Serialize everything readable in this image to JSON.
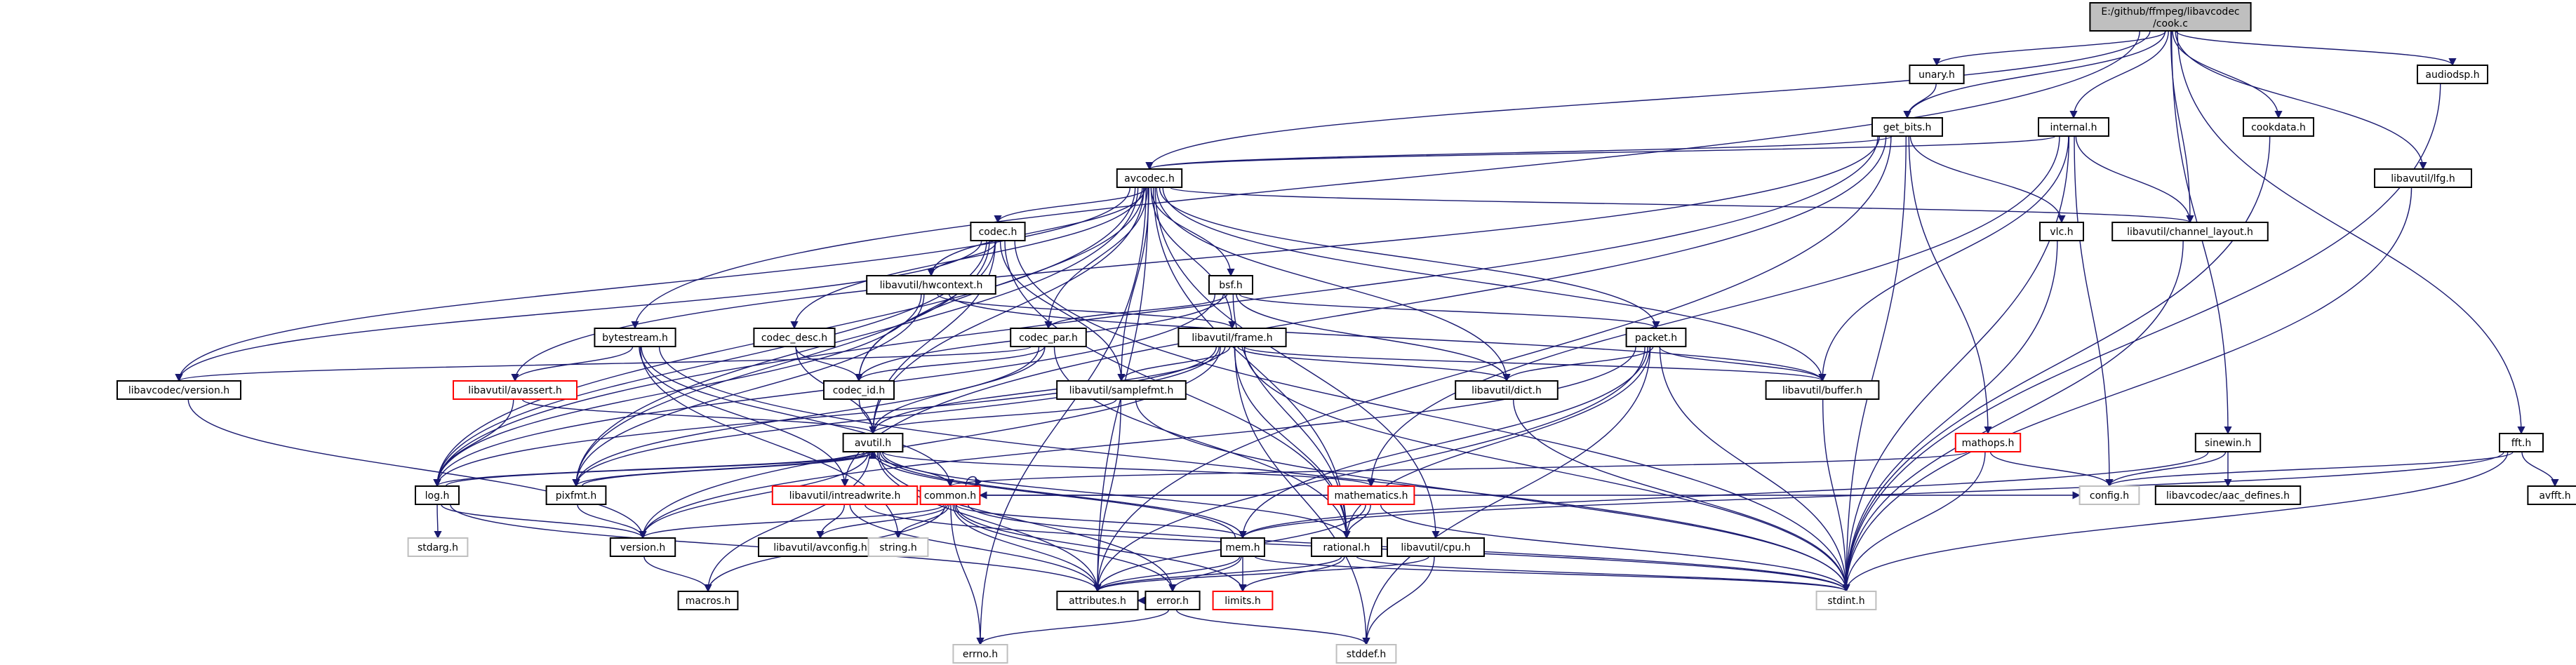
{
  "colors": {
    "edge": "#191970",
    "root_fill": "#bfbfbf",
    "node_border": "#000000",
    "missing_border": "#bfbfbf",
    "incomplete_border": "#ff0000"
  },
  "root": {
    "name": "E:/github/ffmpeg/libavcodec\n/cook.c"
  },
  "nodes": {
    "unary": {
      "label": "unary.h",
      "kind": "normal"
    },
    "get_bits": {
      "label": "get_bits.h",
      "kind": "normal"
    },
    "internal": {
      "label": "internal.h",
      "kind": "normal"
    },
    "audiodsp": {
      "label": "audiodsp.h",
      "kind": "normal"
    },
    "avcodec": {
      "label": "avcodec.h",
      "kind": "normal"
    },
    "cookdata": {
      "label": "cookdata.h",
      "kind": "normal"
    },
    "fft": {
      "label": "fft.h",
      "kind": "normal"
    },
    "lfg": {
      "label": "libavutil/lfg.h",
      "kind": "normal"
    },
    "vlc": {
      "label": "vlc.h",
      "kind": "normal"
    },
    "chlayout": {
      "label": "libavutil/channel_layout.h",
      "kind": "normal"
    },
    "codec": {
      "label": "codec.h",
      "kind": "normal"
    },
    "bsf": {
      "label": "bsf.h",
      "kind": "normal"
    },
    "hwcontext": {
      "label": "libavutil/hwcontext.h",
      "kind": "normal"
    },
    "bytestream": {
      "label": "bytestream.h",
      "kind": "normal"
    },
    "codec_desc": {
      "label": "codec_desc.h",
      "kind": "normal"
    },
    "codec_par": {
      "label": "codec_par.h",
      "kind": "normal"
    },
    "frame": {
      "label": "libavutil/frame.h",
      "kind": "normal"
    },
    "packet": {
      "label": "packet.h",
      "kind": "normal"
    },
    "sinewin": {
      "label": "sinewin.h",
      "kind": "normal"
    },
    "lavcversion": {
      "label": "libavcodec/version.h",
      "kind": "normal"
    },
    "avassert": {
      "label": "libavutil/avassert.h",
      "kind": "incomplete"
    },
    "codec_id": {
      "label": "codec_id.h",
      "kind": "normal"
    },
    "samplefmt": {
      "label": "libavutil/samplefmt.h",
      "kind": "normal"
    },
    "dict": {
      "label": "libavutil/dict.h",
      "kind": "normal"
    },
    "buffer": {
      "label": "libavutil/buffer.h",
      "kind": "normal"
    },
    "mathops": {
      "label": "mathops.h",
      "kind": "incomplete"
    },
    "avutil": {
      "label": "avutil.h",
      "kind": "normal"
    },
    "log": {
      "label": "log.h",
      "kind": "normal"
    },
    "pixfmt": {
      "label": "pixfmt.h",
      "kind": "normal"
    },
    "intreadwrite": {
      "label": "libavutil/intreadwrite.h",
      "kind": "incomplete"
    },
    "common": {
      "label": "common.h",
      "kind": "incomplete"
    },
    "mathematics": {
      "label": "mathematics.h",
      "kind": "incomplete"
    },
    "config": {
      "label": "config.h",
      "kind": "missing"
    },
    "aacdefines": {
      "label": "libavcodec/aac_defines.h",
      "kind": "normal"
    },
    "avfft": {
      "label": "avfft.h",
      "kind": "normal"
    },
    "stdarg": {
      "label": "stdarg.h",
      "kind": "missing"
    },
    "version": {
      "label": "version.h",
      "kind": "normal"
    },
    "avconfig": {
      "label": "libavutil/avconfig.h",
      "kind": "normal"
    },
    "string": {
      "label": "string.h",
      "kind": "missing"
    },
    "mem": {
      "label": "mem.h",
      "kind": "normal"
    },
    "rational": {
      "label": "rational.h",
      "kind": "normal"
    },
    "cpu": {
      "label": "libavutil/cpu.h",
      "kind": "normal"
    },
    "macros": {
      "label": "macros.h",
      "kind": "normal"
    },
    "attributes": {
      "label": "attributes.h",
      "kind": "normal"
    },
    "error": {
      "label": "error.h",
      "kind": "normal"
    },
    "limits": {
      "label": "limits.h",
      "kind": "incomplete"
    },
    "stdint": {
      "label": "stdint.h",
      "kind": "missing"
    },
    "errno": {
      "label": "errno.h",
      "kind": "missing"
    },
    "stddef": {
      "label": "stddef.h",
      "kind": "missing"
    }
  },
  "edges": [
    [
      "root",
      "unary"
    ],
    [
      "root",
      "get_bits"
    ],
    [
      "root",
      "internal"
    ],
    [
      "root",
      "audiodsp"
    ],
    [
      "root",
      "avcodec"
    ],
    [
      "root",
      "cookdata"
    ],
    [
      "root",
      "fft"
    ],
    [
      "root",
      "lfg"
    ],
    [
      "root",
      "chlayout"
    ],
    [
      "root",
      "sinewin"
    ],
    [
      "root",
      "bytestream"
    ],
    [
      "unary",
      "get_bits"
    ],
    [
      "get_bits",
      "avcodec"
    ],
    [
      "get_bits",
      "vlc"
    ],
    [
      "get_bits",
      "mathops"
    ],
    [
      "get_bits",
      "avassert"
    ],
    [
      "get_bits",
      "intreadwrite"
    ],
    [
      "get_bits",
      "log"
    ],
    [
      "get_bits",
      "stdint"
    ],
    [
      "get_bits",
      "attributes"
    ],
    [
      "internal",
      "avcodec"
    ],
    [
      "internal",
      "chlayout"
    ],
    [
      "internal",
      "buffer"
    ],
    [
      "internal",
      "config"
    ],
    [
      "internal",
      "mathematics"
    ],
    [
      "internal",
      "stdint"
    ],
    [
      "audiodsp",
      "stdint"
    ],
    [
      "avcodec",
      "codec"
    ],
    [
      "avcodec",
      "bsf"
    ],
    [
      "avcodec",
      "codec_desc"
    ],
    [
      "avcodec",
      "codec_par"
    ],
    [
      "avcodec",
      "frame"
    ],
    [
      "avcodec",
      "packet"
    ],
    [
      "avcodec",
      "lavcversion"
    ],
    [
      "avcodec",
      "codec_id"
    ],
    [
      "avcodec",
      "samplefmt"
    ],
    [
      "avcodec",
      "dict"
    ],
    [
      "avcodec",
      "buffer"
    ],
    [
      "avcodec",
      "avutil"
    ],
    [
      "avcodec",
      "log"
    ],
    [
      "avcodec",
      "pixfmt"
    ],
    [
      "avcodec",
      "chlayout"
    ],
    [
      "avcodec",
      "attributes"
    ],
    [
      "avcodec",
      "errno"
    ],
    [
      "avcodec",
      "cpu"
    ],
    [
      "avcodec",
      "hwcontext"
    ],
    [
      "avcodec",
      "rational"
    ],
    [
      "cookdata",
      "stdint"
    ],
    [
      "fft",
      "config"
    ],
    [
      "fft",
      "avfft"
    ],
    [
      "fft",
      "mem"
    ],
    [
      "fft",
      "stdint"
    ],
    [
      "lfg",
      "stdint"
    ],
    [
      "vlc",
      "stdint"
    ],
    [
      "chlayout",
      "stdint"
    ],
    [
      "codec",
      "hwcontext"
    ],
    [
      "codec",
      "codec_id"
    ],
    [
      "codec",
      "samplefmt"
    ],
    [
      "codec",
      "lavcversion"
    ],
    [
      "codec",
      "avutil"
    ],
    [
      "codec",
      "log"
    ],
    [
      "codec",
      "pixfmt"
    ],
    [
      "codec",
      "rational"
    ],
    [
      "codec",
      "stdint"
    ],
    [
      "bsf",
      "codec_id"
    ],
    [
      "bsf",
      "codec_par"
    ],
    [
      "bsf",
      "packet"
    ],
    [
      "bsf",
      "dict"
    ],
    [
      "bsf",
      "log"
    ],
    [
      "bsf",
      "rational"
    ],
    [
      "hwcontext",
      "buffer"
    ],
    [
      "hwcontext",
      "frame"
    ],
    [
      "hwcontext",
      "log"
    ],
    [
      "hwcontext",
      "pixfmt"
    ],
    [
      "bytestream",
      "avassert"
    ],
    [
      "bytestream",
      "common"
    ],
    [
      "bytestream",
      "intreadwrite"
    ],
    [
      "bytestream",
      "string"
    ],
    [
      "bytestream",
      "stdint"
    ],
    [
      "codec_desc",
      "codec_id"
    ],
    [
      "codec_desc",
      "avutil"
    ],
    [
      "codec_par",
      "codec_id"
    ],
    [
      "codec_par",
      "avutil"
    ],
    [
      "codec_par",
      "pixfmt"
    ],
    [
      "codec_par",
      "rational"
    ],
    [
      "codec_par",
      "lavcversion"
    ],
    [
      "frame",
      "avutil"
    ],
    [
      "frame",
      "buffer"
    ],
    [
      "frame",
      "dict"
    ],
    [
      "frame",
      "rational"
    ],
    [
      "frame",
      "samplefmt"
    ],
    [
      "frame",
      "pixfmt"
    ],
    [
      "frame",
      "version"
    ],
    [
      "frame",
      "stdint"
    ],
    [
      "frame",
      "stddef"
    ],
    [
      "frame",
      "log"
    ],
    [
      "packet",
      "buffer"
    ],
    [
      "packet",
      "dict"
    ],
    [
      "packet",
      "attributes"
    ],
    [
      "packet",
      "rational"
    ],
    [
      "packet",
      "stdint"
    ],
    [
      "packet",
      "stddef"
    ],
    [
      "packet",
      "mem"
    ],
    [
      "packet",
      "version"
    ],
    [
      "sinewin",
      "config"
    ],
    [
      "sinewin",
      "mem"
    ],
    [
      "sinewin",
      "aacdefines"
    ],
    [
      "lavcversion",
      "version"
    ],
    [
      "avassert",
      "avutil"
    ],
    [
      "avassert",
      "log"
    ],
    [
      "codec_id",
      "avutil"
    ],
    [
      "samplefmt",
      "avutil"
    ],
    [
      "samplefmt",
      "attributes"
    ],
    [
      "samplefmt",
      "stdint"
    ],
    [
      "dict",
      "stdint"
    ],
    [
      "buffer",
      "stdint"
    ],
    [
      "mathops",
      "config"
    ],
    [
      "mathops",
      "common"
    ],
    [
      "mathops",
      "stdint"
    ],
    [
      "avutil",
      "common"
    ],
    [
      "avutil",
      "error"
    ],
    [
      "avutil",
      "rational"
    ],
    [
      "avutil",
      "version"
    ],
    [
      "avutil",
      "macros"
    ],
    [
      "avutil",
      "mathematics"
    ],
    [
      "avutil",
      "log"
    ],
    [
      "avutil",
      "pixfmt"
    ],
    [
      "avutil",
      "attributes"
    ],
    [
      "avutil",
      "mem"
    ],
    [
      "log",
      "avutil"
    ],
    [
      "log",
      "attributes"
    ],
    [
      "log",
      "version"
    ],
    [
      "log",
      "stdarg"
    ],
    [
      "pixfmt",
      "avutil"
    ],
    [
      "pixfmt",
      "version"
    ],
    [
      "intreadwrite",
      "avconfig"
    ],
    [
      "intreadwrite",
      "attributes"
    ],
    [
      "intreadwrite",
      "stdint"
    ],
    [
      "common",
      "common"
    ],
    [
      "common",
      "attributes"
    ],
    [
      "common",
      "macros"
    ],
    [
      "common",
      "version"
    ],
    [
      "common",
      "avconfig"
    ],
    [
      "common",
      "string"
    ],
    [
      "common",
      "errno"
    ],
    [
      "common",
      "limits"
    ],
    [
      "common",
      "mem"
    ],
    [
      "common",
      "stdint"
    ],
    [
      "common",
      "error"
    ],
    [
      "common",
      "config"
    ],
    [
      "mathematics",
      "attributes"
    ],
    [
      "mathematics",
      "rational"
    ],
    [
      "mathematics",
      "stdint"
    ],
    [
      "mathematics",
      "common"
    ],
    [
      "version",
      "macros"
    ],
    [
      "mem",
      "attributes"
    ],
    [
      "mem",
      "error"
    ],
    [
      "mem",
      "avutil"
    ],
    [
      "mem",
      "limits"
    ],
    [
      "mem",
      "stdint"
    ],
    [
      "rational",
      "attributes"
    ],
    [
      "rational",
      "limits"
    ],
    [
      "rational",
      "stdint"
    ],
    [
      "cpu",
      "stddef"
    ],
    [
      "cpu",
      "attributes"
    ],
    [
      "error",
      "errno"
    ],
    [
      "error",
      "stddef"
    ],
    [
      "error",
      "attributes"
    ]
  ]
}
